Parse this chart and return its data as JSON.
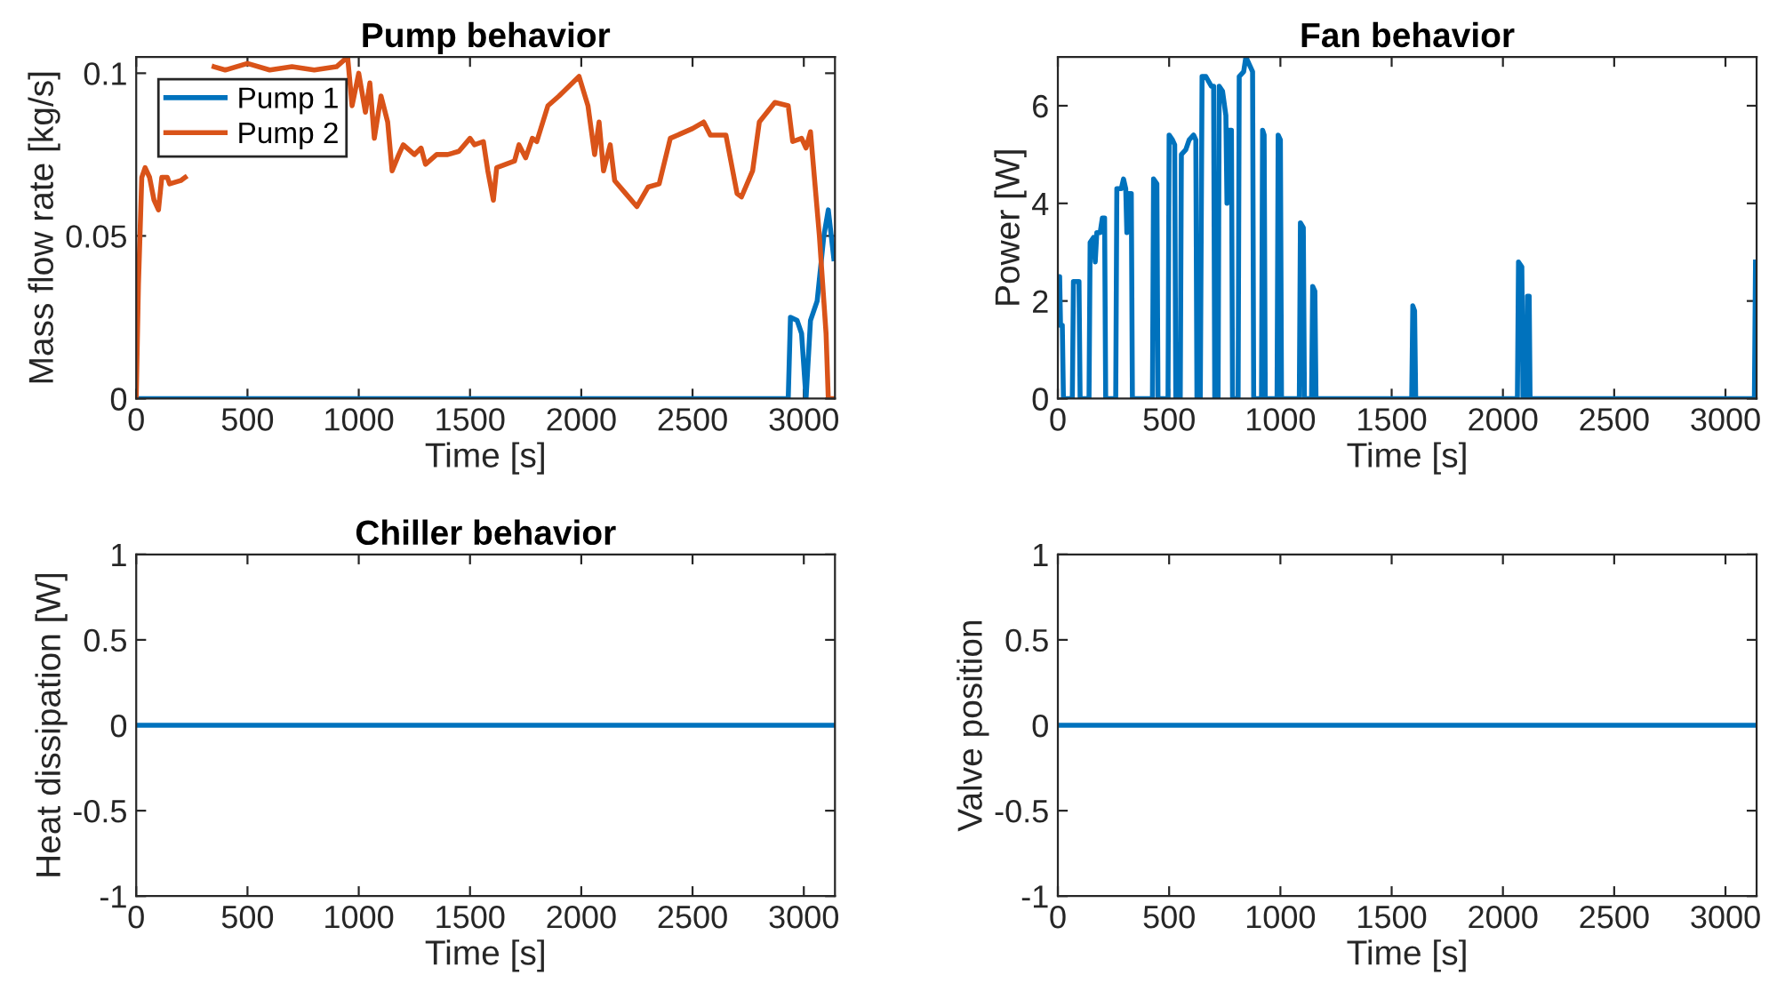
{
  "chart_data": [
    {
      "type": "line",
      "title": "Pump behavior",
      "xlabel": "Time [s]",
      "ylabel": "Mass flow rate [kg/s]",
      "xlim": [
        0,
        3140
      ],
      "ylim": [
        0,
        0.105
      ],
      "xticks": [
        0,
        500,
        1000,
        1500,
        2000,
        2500,
        3000
      ],
      "yticks": [
        0,
        0.05,
        0.1
      ],
      "grid": false,
      "legend": "top left",
      "series": [
        {
          "name": "Pump 1",
          "color": "#0072bd",
          "x": [
            0,
            2930,
            2940,
            2970,
            2990,
            3010,
            3030,
            3060,
            3090,
            3110,
            3135
          ],
          "values": [
            0,
            0,
            0.025,
            0.024,
            0.02,
            0,
            0.024,
            0.03,
            0.05,
            0.058,
            0.043
          ]
        },
        {
          "name": "Pump 2",
          "color": "#d95319",
          "x": [
            0,
            10,
            25,
            40,
            60,
            80,
            100,
            115,
            140,
            150,
            200,
            220,
            240,
            300,
            350,
            400,
            500,
            600,
            700,
            800,
            900,
            950,
            970,
            1000,
            1030,
            1050,
            1070,
            1100,
            1130,
            1150,
            1180,
            1200,
            1250,
            1280,
            1300,
            1350,
            1400,
            1450,
            1500,
            1520,
            1560,
            1580,
            1605,
            1620,
            1700,
            1720,
            1750,
            1780,
            1800,
            1850,
            1900,
            1990,
            2030,
            2060,
            2080,
            2100,
            2130,
            2150,
            2200,
            2250,
            2300,
            2350,
            2400,
            2500,
            2550,
            2580,
            2650,
            2700,
            2720,
            2770,
            2800,
            2870,
            2930,
            2950,
            2990,
            3010,
            3030,
            3070,
            3100,
            3110,
            3135
          ],
          "values": [
            0,
            0.035,
            0.068,
            0.071,
            0.068,
            0.061,
            0.058,
            0.068,
            0.068,
            0.066,
            0.067,
            0.068,
            null,
            null,
            0.102,
            0.101,
            0.103,
            0.101,
            0.102,
            0.101,
            0.102,
            0.105,
            0.09,
            0.1,
            0.088,
            0.097,
            0.08,
            0.093,
            0.085,
            0.07,
            0.075,
            0.078,
            0.075,
            0.077,
            0.072,
            0.075,
            0.075,
            0.076,
            0.08,
            0.078,
            0.079,
            0.07,
            0.061,
            0.071,
            0.073,
            0.078,
            0.074,
            0.08,
            0.079,
            0.09,
            0.093,
            0.099,
            0.09,
            0.075,
            0.085,
            0.07,
            0.078,
            0.067,
            0.063,
            0.059,
            0.065,
            0.066,
            0.08,
            0.083,
            0.085,
            0.081,
            0.081,
            0.063,
            0.062,
            0.07,
            0.085,
            0.091,
            0.09,
            0.079,
            0.08,
            0.077,
            0.082,
            0.05,
            0.02,
            0,
            0
          ]
        }
      ]
    },
    {
      "type": "line",
      "title": "Fan behavior",
      "xlabel": "Time [s]",
      "ylabel": "Power [W]",
      "xlim": [
        0,
        3140
      ],
      "ylim": [
        0,
        7
      ],
      "xticks": [
        0,
        500,
        1000,
        1500,
        2000,
        2500,
        3000
      ],
      "yticks": [
        0,
        2,
        4,
        6
      ],
      "grid": false,
      "series": [
        {
          "color": "#0072bd",
          "x": [
            0,
            8,
            12,
            20,
            25,
            65,
            70,
            95,
            100,
            140,
            145,
            160,
            168,
            175,
            190,
            200,
            210,
            215,
            260,
            265,
            285,
            295,
            305,
            310,
            318,
            330,
            335,
            425,
            430,
            445,
            450,
            495,
            500,
            515,
            525,
            530,
            550,
            555,
            575,
            590,
            610,
            620,
            625,
            640,
            648,
            665,
            690,
            700,
            705,
            720,
            725,
            740,
            755,
            760,
            765,
            780,
            785,
            810,
            815,
            835,
            845,
            865,
            875,
            880,
            915,
            920,
            927,
            932,
            985,
            990,
            1000,
            1005,
            1085,
            1090,
            1103,
            1108,
            1140,
            1145,
            1155,
            1160,
            1590,
            1595,
            1603,
            1608,
            2065,
            2070,
            2085,
            2090,
            2105,
            2110,
            2118,
            2122,
            3130,
            3135
          ],
          "values": [
            2.5,
            2.5,
            1.5,
            1.5,
            0,
            0,
            2.4,
            2.4,
            0,
            0,
            3.2,
            3.3,
            2.8,
            3.4,
            3.4,
            3.7,
            3.7,
            0,
            0,
            4.3,
            4.3,
            4.5,
            4.3,
            3.4,
            4.2,
            4.2,
            0,
            0,
            4.5,
            4.4,
            0,
            0,
            5.4,
            5.3,
            5.2,
            0,
            0,
            5.0,
            5.1,
            5.3,
            5.4,
            5.3,
            0,
            0,
            6.6,
            6.6,
            6.4,
            6.4,
            0,
            0,
            6.4,
            6.3,
            5.8,
            4.0,
            5.5,
            5.5,
            0,
            0,
            6.6,
            6.7,
            7.0,
            6.8,
            6.7,
            0,
            0,
            5.5,
            5.4,
            0,
            0,
            5.4,
            5.3,
            0,
            0,
            3.6,
            3.5,
            0,
            0,
            2.3,
            2.2,
            0,
            0,
            1.9,
            1.8,
            0,
            0,
            2.8,
            2.7,
            0,
            0,
            2.1,
            2.1,
            0,
            0,
            2.8
          ]
        }
      ]
    },
    {
      "type": "line",
      "title": "Chiller behavior",
      "xlabel": "Time [s]",
      "ylabel": "Heat dissipation [W]",
      "xlim": [
        0,
        3140
      ],
      "ylim": [
        -1,
        1
      ],
      "xticks": [
        0,
        500,
        1000,
        1500,
        2000,
        2500,
        3000
      ],
      "yticks": [
        -1,
        -0.5,
        0,
        0.5,
        1
      ],
      "grid": false,
      "series": [
        {
          "color": "#0072bd",
          "x": [
            0,
            3140
          ],
          "values": [
            0,
            0
          ]
        }
      ]
    },
    {
      "type": "line",
      "xlabel": "Time [s]",
      "ylabel": "Valve position",
      "xlim": [
        0,
        3140
      ],
      "ylim": [
        -1,
        1
      ],
      "xticks": [
        0,
        500,
        1000,
        1500,
        2000,
        2500,
        3000
      ],
      "yticks": [
        -1,
        -0.5,
        0,
        0.5,
        1
      ],
      "grid": false,
      "series": [
        {
          "color": "#0072bd",
          "x": [
            0,
            3140
          ],
          "values": [
            0,
            0
          ]
        }
      ]
    }
  ]
}
